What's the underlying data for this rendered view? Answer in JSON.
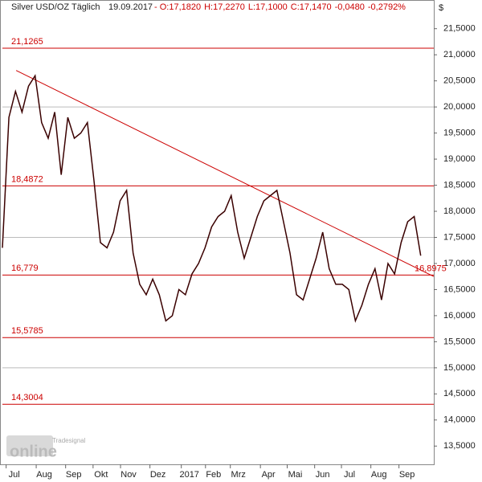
{
  "header": {
    "title": "Silver USD/OZ Täglich",
    "date": "19.09.2017",
    "parts": [
      "- O:17,1820",
      "H:17,2270",
      "L:17,1000",
      "C:17,1470",
      "-0,0480",
      "-0,2792%"
    ],
    "currency": "$"
  },
  "logo": {
    "brand": "Tradesignal",
    "name": "online"
  },
  "chart_data": {
    "type": "line",
    "series": [
      {
        "name": "Silver USD/OZ",
        "color": "#3a0000",
        "values": [
          17.3,
          19.8,
          20.3,
          19.9,
          20.4,
          20.6,
          19.7,
          19.4,
          19.9,
          18.7,
          19.8,
          19.4,
          19.5,
          19.7,
          18.6,
          17.4,
          17.3,
          17.6,
          18.2,
          18.4,
          17.2,
          16.6,
          16.4,
          16.7,
          16.4,
          15.9,
          16.0,
          16.5,
          16.4,
          16.8,
          17.0,
          17.3,
          17.7,
          17.9,
          18.0,
          18.3,
          17.6,
          17.1,
          17.5,
          17.9,
          18.2,
          18.3,
          18.4,
          17.8,
          17.2,
          16.4,
          16.3,
          16.7,
          17.1,
          17.6,
          16.9,
          16.6,
          16.6,
          16.5,
          15.9,
          16.2,
          16.6,
          16.9,
          16.3,
          17.0,
          16.8,
          17.4,
          17.8,
          17.9,
          17.15
        ]
      }
    ],
    "xlim": [
      0,
      66
    ],
    "xticks": [
      {
        "value": 1.8,
        "label": "Jul"
      },
      {
        "value": 6.4,
        "label": "Aug"
      },
      {
        "value": 10.9,
        "label": "Sep"
      },
      {
        "value": 15.1,
        "label": "Okt"
      },
      {
        "value": 19.3,
        "label": "Nov"
      },
      {
        "value": 23.8,
        "label": "Dez"
      },
      {
        "value": 28.6,
        "label": "2017"
      },
      {
        "value": 32.3,
        "label": "Feb"
      },
      {
        "value": 36.1,
        "label": "Mrz"
      },
      {
        "value": 40.7,
        "label": "Apr"
      },
      {
        "value": 44.8,
        "label": "Mai"
      },
      {
        "value": 49,
        "label": "Jun"
      },
      {
        "value": 53.1,
        "label": "Jul"
      },
      {
        "value": 57.6,
        "label": "Aug"
      },
      {
        "value": 61.9,
        "label": "Sep"
      }
    ],
    "ylim": [
      13.15,
      22.05
    ],
    "yticks": [
      {
        "value": 13.5,
        "label": "13,5000"
      },
      {
        "value": 14,
        "label": "14,0000"
      },
      {
        "value": 14.5,
        "label": "14,5000"
      },
      {
        "value": 15,
        "label": "15,0000"
      },
      {
        "value": 15.5,
        "label": "15,5000"
      },
      {
        "value": 16,
        "label": "16,0000"
      },
      {
        "value": 16.5,
        "label": "16,5000"
      },
      {
        "value": 17,
        "label": "17,0000"
      },
      {
        "value": 17.5,
        "label": "17,5000"
      },
      {
        "value": 18,
        "label": "18,0000"
      },
      {
        "value": 18.5,
        "label": "18,5000"
      },
      {
        "value": 19,
        "label": "19,0000"
      },
      {
        "value": 19.5,
        "label": "19,5000"
      },
      {
        "value": 20,
        "label": "20,0000"
      },
      {
        "value": 20.5,
        "label": "20,5000"
      },
      {
        "value": 21,
        "label": "21,0000"
      },
      {
        "value": 21.5,
        "label": "21,5000"
      }
    ],
    "levels": [
      {
        "value": 21.1265,
        "label": "21,1265"
      },
      {
        "value": 18.4872,
        "label": "18,4872"
      },
      {
        "value": 16.779,
        "label": "16,779"
      },
      {
        "value": 15.5785,
        "label": "15,5785"
      },
      {
        "value": 14.3004,
        "label": "14,3004"
      }
    ],
    "level_color": "#cc0000",
    "trendline": {
      "x": [
        2.1,
        66
      ],
      "y": [
        20.7,
        16.75
      ],
      "color": "#cc0000"
    },
    "last_price": {
      "value": 16.8975,
      "label": "16,8975"
    },
    "grid": true
  }
}
